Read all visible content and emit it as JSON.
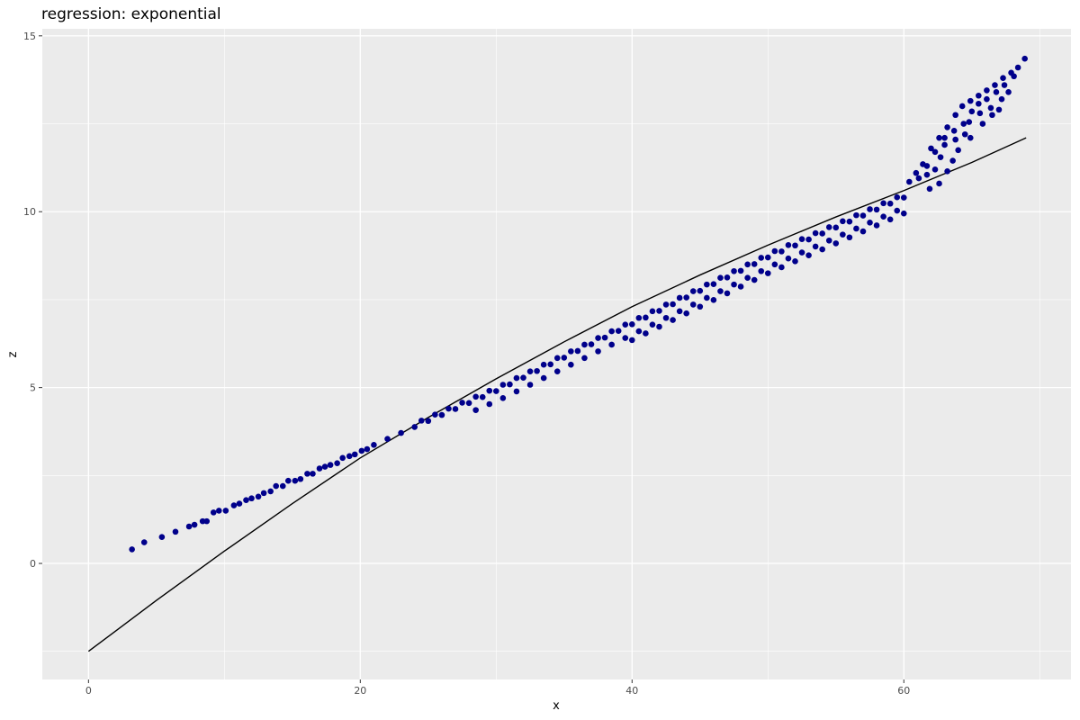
{
  "chart_data": {
    "type": "scatter",
    "title": "regression: exponential",
    "xlabel": "x",
    "ylabel": "z",
    "xlim": [
      -3.4,
      72.3
    ],
    "ylim": [
      -3.3,
      15.2
    ],
    "xticks": [
      0,
      20,
      40,
      60
    ],
    "yticks": [
      0,
      5,
      10,
      15
    ],
    "xtick_labels": [
      "0",
      "20",
      "40",
      "60"
    ],
    "ytick_labels": [
      "0",
      "5",
      "10",
      "15"
    ],
    "grid": true,
    "colors": {
      "points": "#00008B",
      "fit_line": "#000000",
      "panel": "#EBEBEB",
      "grid": "#FFFFFF"
    },
    "points": [
      [
        3.2,
        0.4
      ],
      [
        4.1,
        0.6
      ],
      [
        5.4,
        0.75
      ],
      [
        6.4,
        0.9
      ],
      [
        7.4,
        1.05
      ],
      [
        7.8,
        1.1
      ],
      [
        8.4,
        1.2
      ],
      [
        8.7,
        1.2
      ],
      [
        9.2,
        1.45
      ],
      [
        9.6,
        1.5
      ],
      [
        10.1,
        1.5
      ],
      [
        10.7,
        1.65
      ],
      [
        11.1,
        1.7
      ],
      [
        11.6,
        1.8
      ],
      [
        12.0,
        1.85
      ],
      [
        12.5,
        1.9
      ],
      [
        12.9,
        2.0
      ],
      [
        13.4,
        2.05
      ],
      [
        13.8,
        2.2
      ],
      [
        14.3,
        2.2
      ],
      [
        14.7,
        2.35
      ],
      [
        15.2,
        2.35
      ],
      [
        15.6,
        2.4
      ],
      [
        16.1,
        2.55
      ],
      [
        16.5,
        2.55
      ],
      [
        17.0,
        2.7
      ],
      [
        17.4,
        2.75
      ],
      [
        17.8,
        2.8
      ],
      [
        18.3,
        2.85
      ],
      [
        18.7,
        3.0
      ],
      [
        19.2,
        3.05
      ],
      [
        19.6,
        3.1
      ],
      [
        20.1,
        3.2
      ],
      [
        20.5,
        3.25
      ],
      [
        21,
        3.37
      ],
      [
        22,
        3.54
      ],
      [
        23,
        3.71
      ],
      [
        24,
        3.88
      ],
      [
        25,
        4.05
      ],
      [
        26,
        4.22
      ],
      [
        27,
        4.39
      ],
      [
        28,
        4.56
      ],
      [
        29,
        4.73
      ],
      [
        30,
        4.9
      ],
      [
        31,
        5.09
      ],
      [
        32,
        5.28
      ],
      [
        33,
        5.47
      ],
      [
        34,
        5.66
      ],
      [
        35,
        5.85
      ],
      [
        36,
        6.04
      ],
      [
        37,
        6.23
      ],
      [
        38,
        6.42
      ],
      [
        39,
        6.61
      ],
      [
        40,
        6.8
      ],
      [
        41,
        6.99
      ],
      [
        42,
        7.18
      ],
      [
        43,
        7.37
      ],
      [
        44,
        7.56
      ],
      [
        45,
        7.75
      ],
      [
        46,
        7.94
      ],
      [
        47,
        8.13
      ],
      [
        48,
        8.32
      ],
      [
        49,
        8.51
      ],
      [
        50,
        8.7
      ],
      [
        51,
        8.87
      ],
      [
        52,
        9.04
      ],
      [
        53,
        9.21
      ],
      [
        54,
        9.38
      ],
      [
        55,
        9.55
      ],
      [
        56,
        9.72
      ],
      [
        57,
        9.89
      ],
      [
        58,
        10.06
      ],
      [
        59,
        10.23
      ],
      [
        60,
        10.4
      ],
      [
        24.5,
        4.06
      ],
      [
        25.5,
        4.23
      ],
      [
        26.5,
        4.4
      ],
      [
        27.5,
        4.57
      ],
      [
        28.5,
        4.74
      ],
      [
        29.5,
        4.91
      ],
      [
        30.5,
        5.08
      ],
      [
        31.5,
        5.27
      ],
      [
        32.5,
        5.46
      ],
      [
        33.5,
        5.65
      ],
      [
        34.5,
        5.84
      ],
      [
        35.5,
        6.03
      ],
      [
        36.5,
        6.22
      ],
      [
        37.5,
        6.41
      ],
      [
        38.5,
        6.6
      ],
      [
        39.5,
        6.79
      ],
      [
        40.5,
        6.98
      ],
      [
        41.5,
        7.17
      ],
      [
        42.5,
        7.36
      ],
      [
        43.5,
        7.55
      ],
      [
        44.5,
        7.74
      ],
      [
        45.5,
        7.93
      ],
      [
        46.5,
        8.12
      ],
      [
        47.5,
        8.31
      ],
      [
        48.5,
        8.5
      ],
      [
        49.5,
        8.69
      ],
      [
        50.5,
        8.88
      ],
      [
        51.5,
        9.05
      ],
      [
        52.5,
        9.22
      ],
      [
        53.5,
        9.39
      ],
      [
        54.5,
        9.56
      ],
      [
        55.5,
        9.73
      ],
      [
        56.5,
        9.9
      ],
      [
        57.5,
        10.07
      ],
      [
        58.5,
        10.24
      ],
      [
        59.5,
        10.41
      ],
      [
        28.5,
        4.36
      ],
      [
        29.5,
        4.53
      ],
      [
        30.5,
        4.7
      ],
      [
        31.5,
        4.89
      ],
      [
        32.5,
        5.08
      ],
      [
        33.5,
        5.27
      ],
      [
        34.5,
        5.46
      ],
      [
        35.5,
        5.65
      ],
      [
        36.5,
        5.84
      ],
      [
        37.5,
        6.03
      ],
      [
        38.5,
        6.22
      ],
      [
        39.5,
        6.41
      ],
      [
        40.5,
        6.6
      ],
      [
        41.5,
        6.79
      ],
      [
        42.5,
        6.98
      ],
      [
        43.5,
        7.17
      ],
      [
        44.5,
        7.36
      ],
      [
        45.5,
        7.55
      ],
      [
        46.5,
        7.74
      ],
      [
        47.5,
        7.93
      ],
      [
        48.5,
        8.12
      ],
      [
        49.5,
        8.31
      ],
      [
        50.5,
        8.5
      ],
      [
        51.5,
        8.67
      ],
      [
        52.5,
        8.84
      ],
      [
        53.5,
        9.01
      ],
      [
        54.5,
        9.18
      ],
      [
        55.5,
        9.35
      ],
      [
        56.5,
        9.52
      ],
      [
        57.5,
        9.69
      ],
      [
        58.5,
        9.86
      ],
      [
        59.5,
        10.03
      ],
      [
        40,
        6.35
      ],
      [
        41,
        6.54
      ],
      [
        42,
        6.73
      ],
      [
        43,
        6.92
      ],
      [
        44,
        7.11
      ],
      [
        45,
        7.3
      ],
      [
        46,
        7.49
      ],
      [
        47,
        7.68
      ],
      [
        48,
        7.87
      ],
      [
        49,
        8.06
      ],
      [
        50,
        8.25
      ],
      [
        51,
        8.42
      ],
      [
        52,
        8.59
      ],
      [
        53,
        8.76
      ],
      [
        54,
        8.93
      ],
      [
        55,
        9.1
      ],
      [
        56,
        9.27
      ],
      [
        57,
        9.44
      ],
      [
        58,
        9.61
      ],
      [
        59,
        9.78
      ],
      [
        60,
        9.95
      ],
      [
        60.4,
        10.85
      ],
      [
        60.9,
        11.1
      ],
      [
        61.4,
        11.35
      ],
      [
        62.0,
        11.8
      ],
      [
        62.6,
        12.1
      ],
      [
        63.2,
        12.4
      ],
      [
        63.8,
        12.75
      ],
      [
        64.3,
        13.0
      ],
      [
        64.9,
        13.15
      ],
      [
        65.5,
        13.3
      ],
      [
        66.1,
        13.45
      ],
      [
        66.7,
        13.6
      ],
      [
        67.3,
        13.8
      ],
      [
        67.9,
        13.95
      ],
      [
        68.4,
        14.1
      ],
      [
        68.9,
        14.35
      ],
      [
        61.7,
        11.3
      ],
      [
        62.3,
        11.7
      ],
      [
        63.0,
        12.1
      ],
      [
        63.7,
        12.3
      ],
      [
        64.4,
        12.5
      ],
      [
        65.0,
        12.85
      ],
      [
        65.5,
        13.07
      ],
      [
        66.1,
        13.2
      ],
      [
        66.8,
        13.4
      ],
      [
        67.4,
        13.6
      ],
      [
        68.1,
        13.85
      ],
      [
        61.1,
        10.95
      ],
      [
        61.7,
        11.05
      ],
      [
        62.3,
        11.2
      ],
      [
        62.7,
        11.55
      ],
      [
        63.0,
        11.9
      ],
      [
        63.8,
        12.05
      ],
      [
        64.5,
        12.2
      ],
      [
        64.8,
        12.55
      ],
      [
        65.6,
        12.8
      ],
      [
        66.4,
        12.95
      ],
      [
        67.2,
        13.2
      ],
      [
        67.7,
        13.4
      ],
      [
        61.9,
        10.65
      ],
      [
        62.6,
        10.8
      ],
      [
        63.2,
        11.15
      ],
      [
        63.6,
        11.45
      ],
      [
        64.0,
        11.75
      ],
      [
        64.9,
        12.1
      ],
      [
        65.8,
        12.5
      ],
      [
        66.5,
        12.75
      ],
      [
        67.0,
        12.9
      ]
    ],
    "fit_line": [
      [
        0,
        -2.5
      ],
      [
        5,
        -1.05
      ],
      [
        10,
        0.35
      ],
      [
        15,
        1.7
      ],
      [
        20,
        3.0
      ],
      [
        25,
        4.15
      ],
      [
        30,
        5.25
      ],
      [
        35,
        6.3
      ],
      [
        40,
        7.3
      ],
      [
        45,
        8.2
      ],
      [
        50,
        9.05
      ],
      [
        55,
        9.85
      ],
      [
        60,
        10.6
      ],
      [
        65,
        11.4
      ],
      [
        69,
        12.1
      ]
    ]
  }
}
